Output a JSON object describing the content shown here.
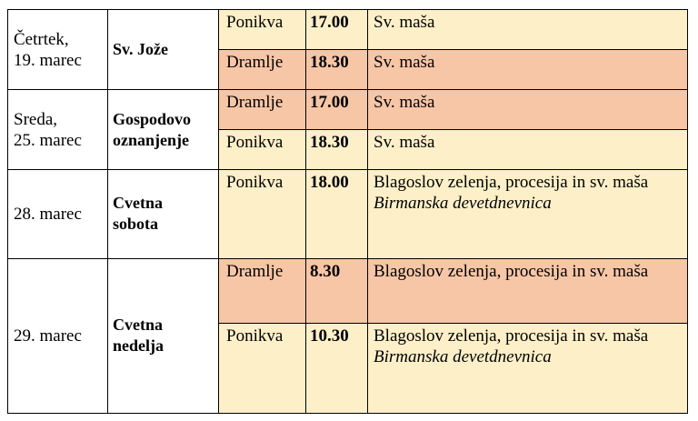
{
  "groups": [
    {
      "day": [
        "Četrtek,",
        "19. marec"
      ],
      "feast": [
        "Sv. Jože"
      ],
      "rows": [
        {
          "place": "Ponikva",
          "time": "17.00",
          "desc": "Sv. maša",
          "note": ""
        },
        {
          "place": "Dramlje",
          "time": "18.30",
          "desc": "Sv. maša",
          "note": ""
        }
      ]
    },
    {
      "day": [
        "Sreda,",
        "25. marec"
      ],
      "feast": [
        "Gospodovo",
        "oznanjenje"
      ],
      "rows": [
        {
          "place": "Dramlje",
          "time": "17.00",
          "desc": "Sv. maša",
          "note": ""
        },
        {
          "place": "Ponikva",
          "time": "18.30",
          "desc": "Sv. maša",
          "note": ""
        }
      ]
    },
    {
      "day": [
        "28. marec"
      ],
      "feast": [
        "Cvetna",
        "sobota"
      ],
      "rows": [
        {
          "place": "Ponikva",
          "time": "18.00",
          "desc": "Blagoslov zelenja, procesija in sv. maša",
          "note": "Birmanska devetdnevnica"
        }
      ]
    },
    {
      "day": [
        "29. marec"
      ],
      "feast": [
        "Cvetna",
        "nedelja"
      ],
      "rows": [
        {
          "place": "Dramlje",
          "time": "8.30",
          "desc": "Blagoslov zelenja, procesija in sv. maša",
          "note": ""
        },
        {
          "place": "Ponikva",
          "time": "10.30",
          "desc": "Blagoslov zelenja, procesija  in sv. maša",
          "note": "Birmanska devetdnevnica"
        }
      ]
    }
  ],
  "colors": {
    "ponikva_bg": "#fdefc8",
    "dramlje_bg": "#f7c6a6"
  }
}
